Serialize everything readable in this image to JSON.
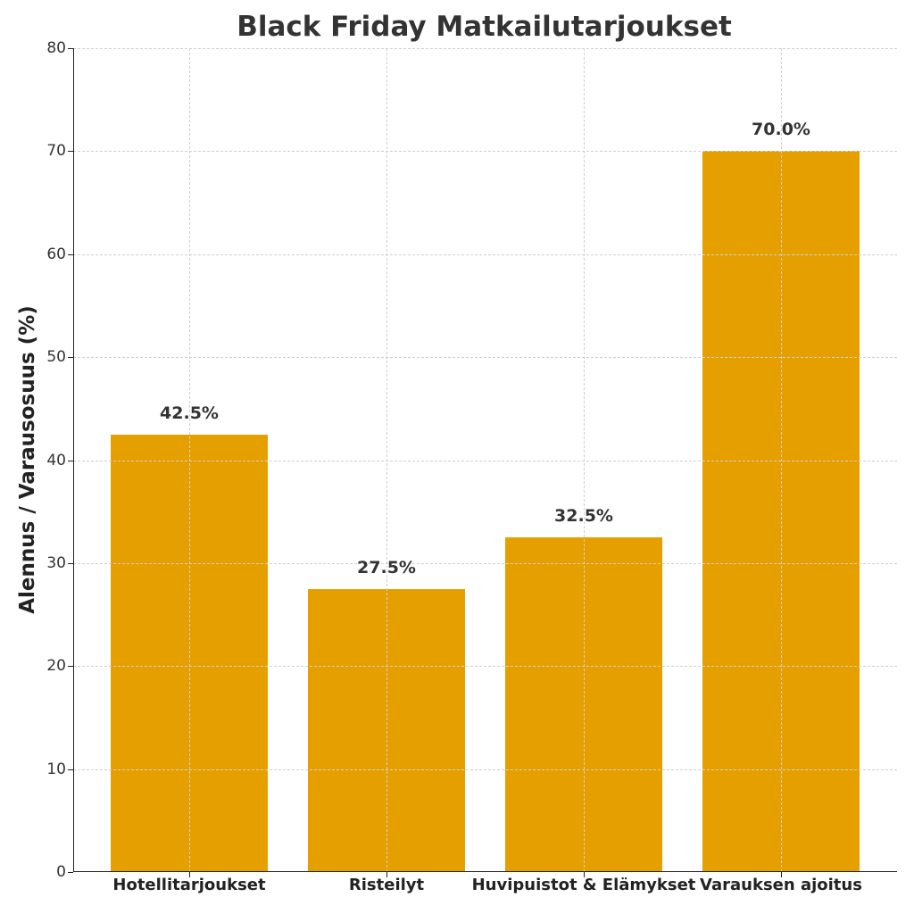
{
  "chart_data": {
    "type": "bar",
    "title": "Black Friday Matkailutarjoukset",
    "xlabel": "",
    "ylabel": "Alennus / Varausosuus (%)",
    "categories": [
      "Hotellitarjoukset",
      "Risteilyt",
      "Huvipuistot & Elämykset",
      "Varauksen ajoitus"
    ],
    "values": [
      42.5,
      27.5,
      32.5,
      70.0
    ],
    "data_labels": [
      "42.5%",
      "27.5%",
      "32.5%",
      "70.0%"
    ],
    "ylim": [
      0,
      80
    ],
    "yticks": [
      0,
      10,
      20,
      30,
      40,
      50,
      60,
      70,
      80
    ],
    "grid": true,
    "bar_color": "#E5A000",
    "legend": null
  }
}
